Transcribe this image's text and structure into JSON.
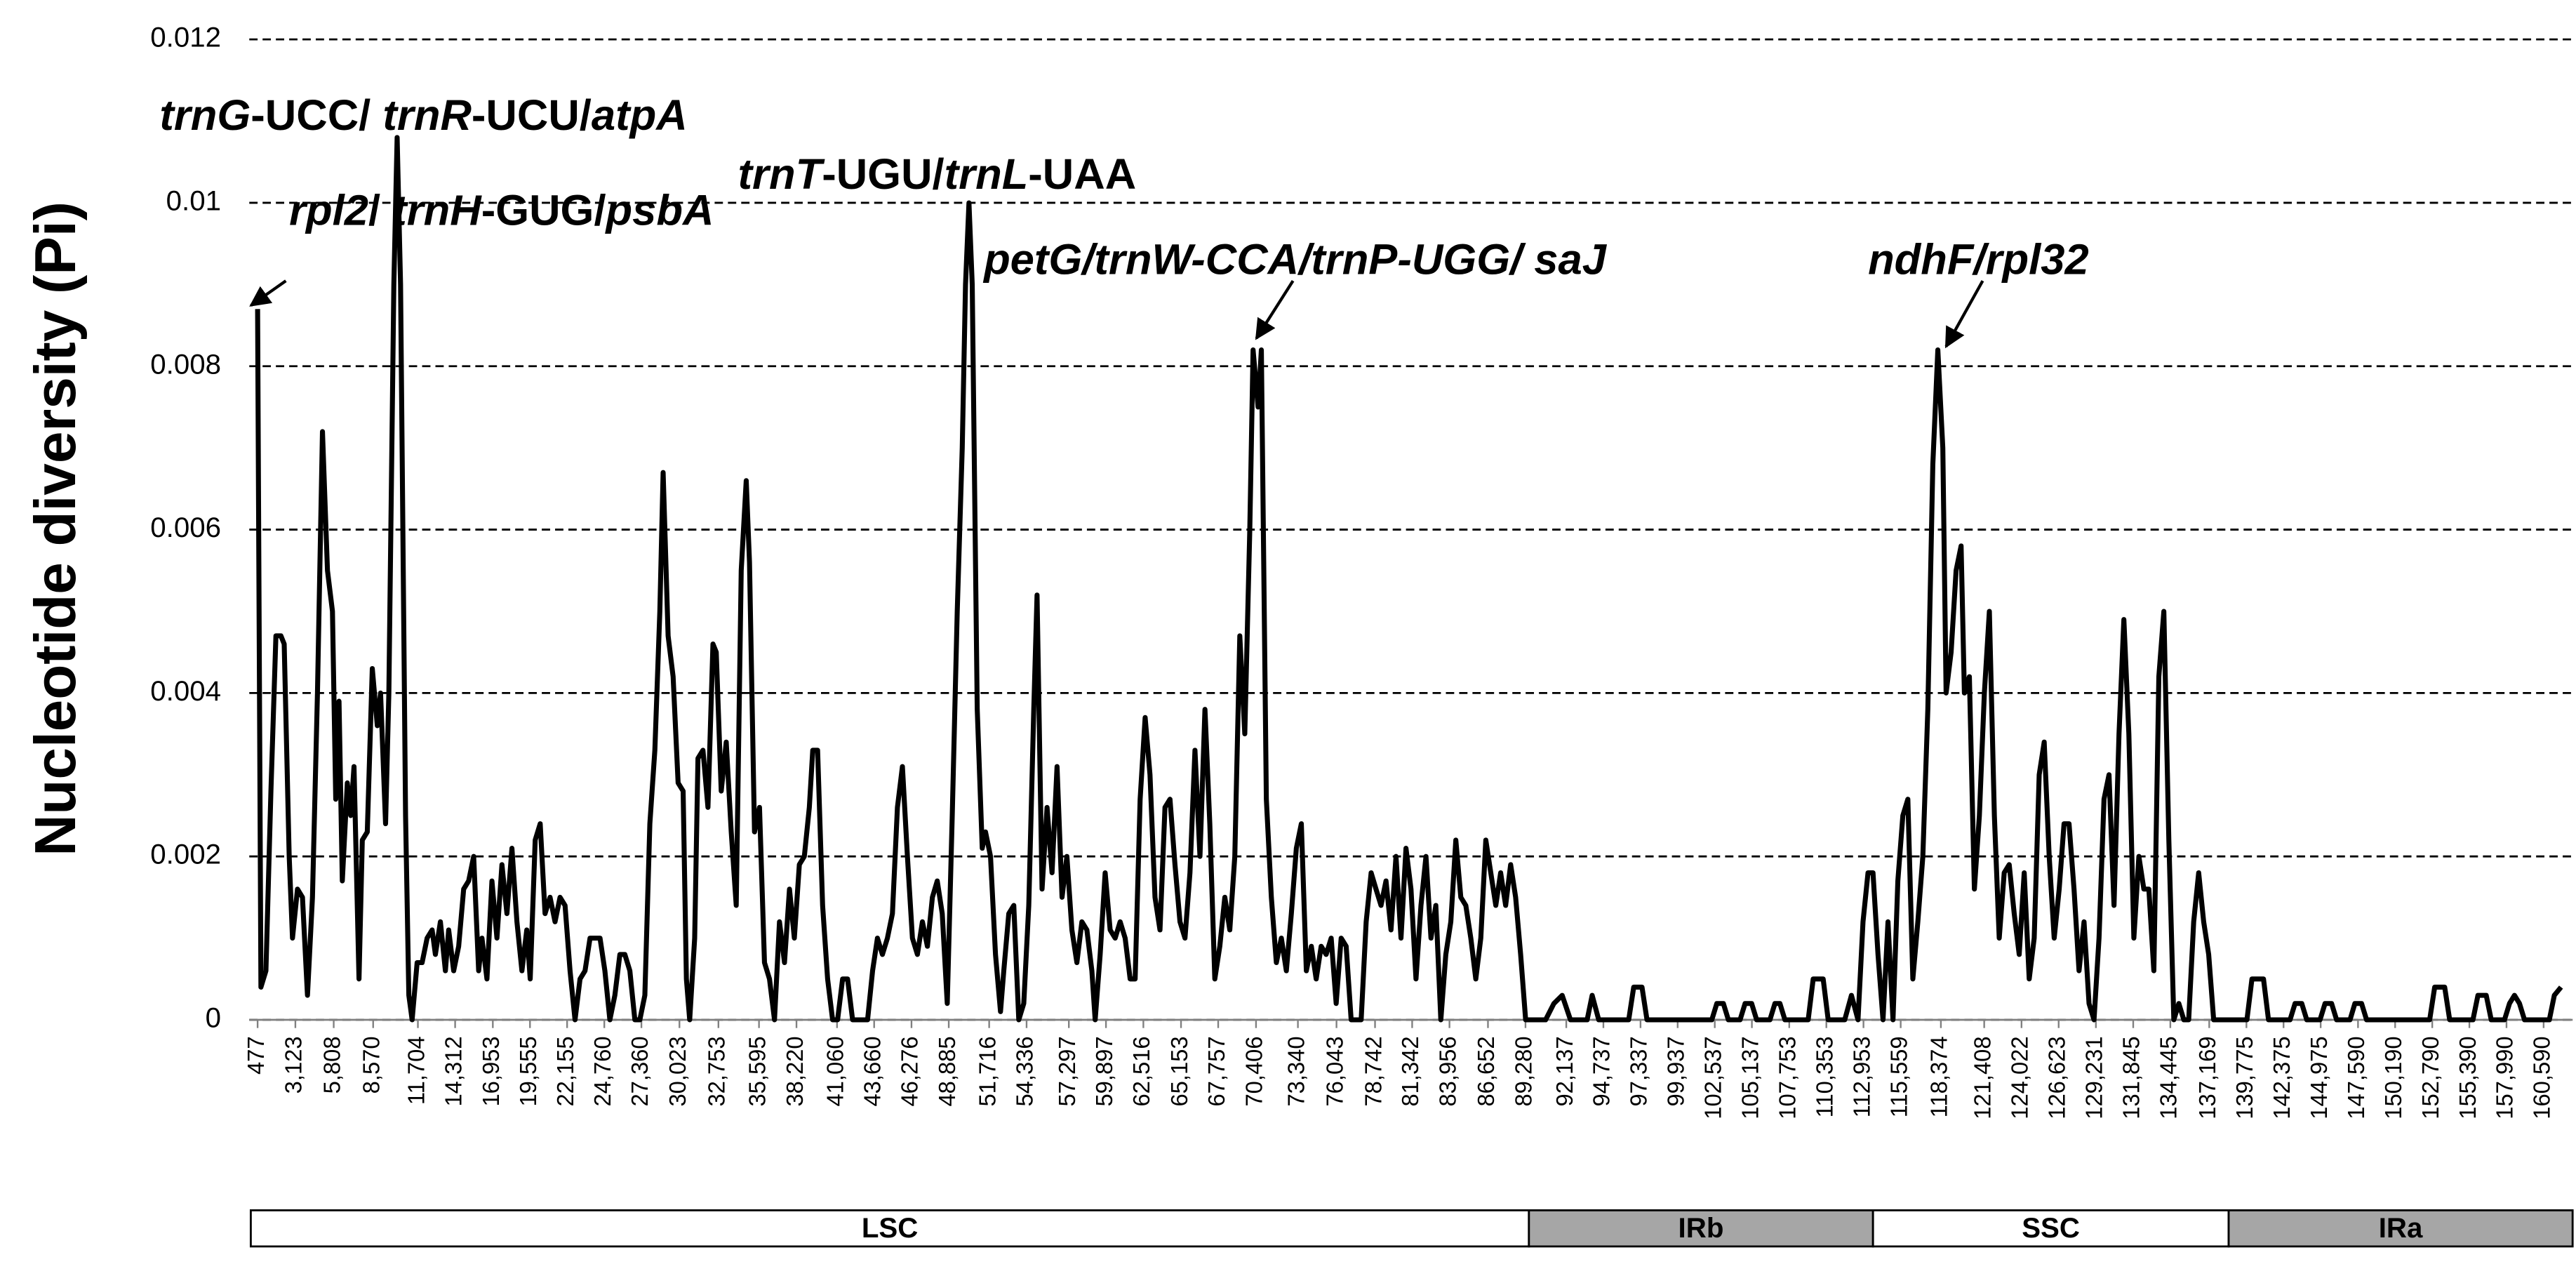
{
  "chart_data": {
    "type": "line",
    "ylabel": "Nucleotide diversity (Pi)",
    "color": "#000000",
    "grid": true,
    "ylim": [
      0,
      0.012
    ],
    "yticks": [
      0,
      0.002,
      0.004,
      0.006,
      0.008,
      0.01,
      0.012
    ],
    "xlim": [
      477,
      161810
    ],
    "xticks": [
      477,
      {
        "value": 3123,
        "label": "3,123"
      },
      {
        "value": 5808,
        "label": "5,808"
      },
      {
        "value": 8570,
        "label": "8,570"
      },
      {
        "value": 11704,
        "label": "11,704"
      },
      {
        "value": 14312,
        "label": "14,312"
      },
      {
        "value": 16953,
        "label": "16,953"
      },
      {
        "value": 19555,
        "label": "19,555"
      },
      {
        "value": 22155,
        "label": "22,155"
      },
      {
        "value": 24760,
        "label": "24,760"
      },
      {
        "value": 27360,
        "label": "27,360"
      },
      {
        "value": 30023,
        "label": "30,023"
      },
      {
        "value": 32753,
        "label": "32,753"
      },
      {
        "value": 35595,
        "label": "35,595"
      },
      {
        "value": 38220,
        "label": "38,220"
      },
      {
        "value": 41060,
        "label": "41,060"
      },
      {
        "value": 43660,
        "label": "43,660"
      },
      {
        "value": 46276,
        "label": "46,276"
      },
      {
        "value": 48885,
        "label": "48,885"
      },
      {
        "value": 51716,
        "label": "51,716"
      },
      {
        "value": 54336,
        "label": "54,336"
      },
      {
        "value": 57297,
        "label": "57,297"
      },
      {
        "value": 59897,
        "label": "59,897"
      },
      {
        "value": 62516,
        "label": "62,516"
      },
      {
        "value": 65153,
        "label": "65,153"
      },
      {
        "value": 67757,
        "label": "67,757"
      },
      {
        "value": 70406,
        "label": "70,406"
      },
      {
        "value": 73340,
        "label": "73,340"
      },
      {
        "value": 76043,
        "label": "76,043"
      },
      {
        "value": 78742,
        "label": "78,742"
      },
      {
        "value": 81342,
        "label": "81,342"
      },
      {
        "value": 83956,
        "label": "83,956"
      },
      {
        "value": 86652,
        "label": "86,652"
      },
      {
        "value": 89280,
        "label": "89,280"
      },
      {
        "value": 92137,
        "label": "92,137"
      },
      {
        "value": 94737,
        "label": "94,737"
      },
      {
        "value": 97337,
        "label": "97,337"
      },
      {
        "value": 99937,
        "label": "99,937"
      },
      {
        "value": 102537,
        "label": "102,537"
      },
      {
        "value": 105137,
        "label": "105,137"
      },
      {
        "value": 107753,
        "label": "107,753"
      },
      {
        "value": 110353,
        "label": "110,353"
      },
      {
        "value": 112953,
        "label": "112,953"
      },
      {
        "value": 115559,
        "label": "115,559"
      },
      {
        "value": 118374,
        "label": "118,374"
      },
      {
        "value": 121408,
        "label": "121,408"
      },
      {
        "value": 124022,
        "label": "124,022"
      },
      {
        "value": 126623,
        "label": "126,623"
      },
      {
        "value": 129231,
        "label": "129,231"
      },
      {
        "value": 131845,
        "label": "131,845"
      },
      {
        "value": 134445,
        "label": "134,445"
      },
      {
        "value": 137169,
        "label": "137,169"
      },
      {
        "value": 139775,
        "label": "139,775"
      },
      {
        "value": 142375,
        "label": "142,375"
      },
      {
        "value": 144975,
        "label": "144,975"
      },
      {
        "value": 147590,
        "label": "147,590"
      },
      {
        "value": 150190,
        "label": "150,190"
      },
      {
        "value": 152790,
        "label": "152,790"
      },
      {
        "value": 155390,
        "label": "155,390"
      },
      {
        "value": 157990,
        "label": "157,990"
      },
      {
        "value": 160590,
        "label": "160,590"
      }
    ],
    "x": [
      477,
      710,
      1060,
      1410,
      1760,
      2110,
      2340,
      2690,
      2920,
      3270,
      3620,
      3970,
      4320,
      4670,
      5020,
      5370,
      5720,
      5950,
      6180,
      6410,
      6760,
      7000,
      7230,
      7580,
      7810,
      8160,
      8510,
      8860,
      9090,
      9440,
      9670,
      10020,
      10250,
      10490,
      10840,
      11070,
      11300,
      11650,
      12000,
      12350,
      12700,
      12930,
      13280,
      13630,
      13860,
      14210,
      14560,
      14910,
      15260,
      15610,
      15960,
      16190,
      16540,
      16890,
      17240,
      17590,
      17940,
      18290,
      18640,
      18990,
      19330,
      19570,
      19920,
      20270,
      20610,
      20960,
      21310,
      21660,
      22010,
      22360,
      22710,
      23060,
      23410,
      23760,
      24110,
      24460,
      24800,
      25150,
      25500,
      25850,
      26200,
      26550,
      26900,
      27250,
      27600,
      27950,
      28300,
      28650,
      28880,
      29230,
      29580,
      29930,
      30280,
      30510,
      30740,
      31090,
      31320,
      31670,
      32020,
      32370,
      32600,
      32950,
      33300,
      33650,
      34000,
      34350,
      34700,
      34930,
      35280,
      35630,
      35980,
      36330,
      36680,
      37030,
      37380,
      37730,
      38070,
      38420,
      38770,
      39120,
      39360,
      39700,
      40050,
      40400,
      40750,
      41100,
      41450,
      41800,
      42150,
      43200,
      43550,
      43890,
      44240,
      44590,
      44940,
      45290,
      45640,
      45990,
      46340,
      46690,
      47040,
      47390,
      47740,
      48080,
      48430,
      48780,
      49130,
      49480,
      49830,
      50060,
      50300,
      50530,
      50880,
      51230,
      51460,
      51810,
      52160,
      52510,
      52740,
      53090,
      53440,
      53790,
      54140,
      54490,
      54840,
      55070,
      55420,
      55770,
      56120,
      56470,
      56820,
      57160,
      57510,
      57860,
      58210,
      58560,
      58910,
      59140,
      59490,
      59840,
      60190,
      60540,
      60890,
      61240,
      61590,
      61940,
      62290,
      62640,
      62980,
      63330,
      63680,
      64030,
      64380,
      64730,
      65080,
      65430,
      65780,
      66130,
      66480,
      66830,
      67170,
      67520,
      67870,
      68220,
      68570,
      68920,
      69270,
      69620,
      69970,
      70200,
      70550,
      70780,
      71130,
      71480,
      71830,
      72180,
      72530,
      72880,
      73230,
      73580,
      73930,
      74280,
      74620,
      74970,
      75320,
      75670,
      76020,
      76370,
      76720,
      77070,
      77770,
      78120,
      78470,
      78810,
      79160,
      79510,
      79860,
      80210,
      80560,
      80910,
      81260,
      81610,
      81960,
      82310,
      82660,
      83000,
      83350,
      83700,
      84050,
      84400,
      84750,
      85100,
      85450,
      85800,
      86150,
      86500,
      86850,
      87200,
      87540,
      87890,
      88240,
      88590,
      88940,
      89290,
      90690,
      91270,
      91850,
      92430,
      93600,
      93950,
      94410,
      96510,
      96860,
      97440,
      97790,
      102330,
      102680,
      103140,
      103490,
      104310,
      104660,
      105120,
      105470,
      106400,
      106750,
      107100,
      107450,
      109080,
      109430,
      110130,
      110480,
      111640,
      112110,
      112570,
      112920,
      113270,
      113620,
      113970,
      114320,
      114670,
      115020,
      115360,
      115710,
      116060,
      116410,
      116760,
      117110,
      117460,
      117810,
      118160,
      118510,
      118740,
      119090,
      119440,
      119790,
      120020,
      120370,
      120720,
      121070,
      121420,
      121770,
      122120,
      122460,
      122810,
      123160,
      123510,
      123860,
      124210,
      124560,
      124910,
      125260,
      125610,
      125960,
      126310,
      126660,
      127000,
      127350,
      127700,
      128050,
      128400,
      128750,
      129100,
      129450,
      129800,
      130150,
      130500,
      130850,
      131190,
      131540,
      131890,
      132240,
      132590,
      132940,
      133290,
      133640,
      133990,
      134340,
      134690,
      135040,
      135390,
      135730,
      136080,
      136430,
      136780,
      137130,
      137480,
      139810,
      140160,
      140970,
      141320,
      142830,
      143180,
      143650,
      144000,
      144930,
      145280,
      145740,
      146090,
      147030,
      147370,
      147840,
      148190,
      152610,
      152960,
      153660,
      154010,
      155640,
      155990,
      156570,
      156920,
      157850,
      158200,
      158550,
      158900,
      159250,
      160990,
      161340,
      161810
    ],
    "values": [
      0.0087,
      0.0004,
      0.0006,
      0.0028,
      0.0047,
      0.0047,
      0.0046,
      0.002,
      0.001,
      0.0016,
      0.0015,
      0.0003,
      0.0015,
      0.004,
      0.0072,
      0.0055,
      0.005,
      0.0027,
      0.0039,
      0.0017,
      0.0029,
      0.0025,
      0.0031,
      0.0005,
      0.0022,
      0.0023,
      0.0043,
      0.0036,
      0.004,
      0.0024,
      0.004,
      0.009,
      0.0108,
      0.009,
      0.0025,
      0.0003,
      0,
      0.0007,
      0.0007,
      0.001,
      0.0011,
      0.0008,
      0.0012,
      0.0006,
      0.0011,
      0.0006,
      0.0009,
      0.0016,
      0.0017,
      0.002,
      0.0006,
      0.001,
      0.0005,
      0.0017,
      0.001,
      0.0019,
      0.0013,
      0.0021,
      0.0012,
      0.0006,
      0.0011,
      0.0005,
      0.0022,
      0.0024,
      0.0013,
      0.0015,
      0.0012,
      0.0015,
      0.0014,
      0.0006,
      0,
      0.0005,
      0.0006,
      0.001,
      0.001,
      0.001,
      0.0006,
      0,
      0.0003,
      0.0008,
      0.0008,
      0.0006,
      0,
      0,
      0.0003,
      0.0024,
      0.0033,
      0.005,
      0.0067,
      0.0047,
      0.0042,
      0.0029,
      0.0028,
      0.0005,
      0,
      0.001,
      0.0032,
      0.0033,
      0.0026,
      0.0046,
      0.0045,
      0.0028,
      0.0034,
      0.0023,
      0.0014,
      0.0055,
      0.0066,
      0.0056,
      0.0023,
      0.0026,
      0.0007,
      0.0005,
      0,
      0.0012,
      0.0007,
      0.0016,
      0.001,
      0.0019,
      0.002,
      0.0026,
      0.0033,
      0.0033,
      0.0014,
      0.0005,
      0,
      0,
      0.0005,
      0.0005,
      0,
      0,
      0.0006,
      0.001,
      0.0008,
      0.001,
      0.0013,
      0.0026,
      0.0031,
      0.002,
      0.001,
      0.0008,
      0.0012,
      0.0009,
      0.0015,
      0.0017,
      0.0013,
      0.0002,
      0.0025,
      0.005,
      0.007,
      0.009,
      0.01,
      0.009,
      0.0038,
      0.0021,
      0.0023,
      0.002,
      0.0008,
      0.0001,
      0.0006,
      0.0013,
      0.0014,
      0,
      0.0002,
      0.0014,
      0.0038,
      0.0052,
      0.0016,
      0.0026,
      0.0018,
      0.0031,
      0.0015,
      0.002,
      0.0011,
      0.0007,
      0.0012,
      0.0011,
      0.0006,
      0,
      0.0008,
      0.0018,
      0.0011,
      0.001,
      0.0012,
      0.001,
      0.0005,
      0.0005,
      0.0027,
      0.0037,
      0.003,
      0.0015,
      0.0011,
      0.0026,
      0.0027,
      0.0019,
      0.0012,
      0.001,
      0.0018,
      0.0033,
      0.002,
      0.0038,
      0.0024,
      0.0005,
      0.0009,
      0.0015,
      0.0011,
      0.002,
      0.0047,
      0.0035,
      0.006,
      0.0082,
      0.0075,
      0.0082,
      0.0027,
      0.0015,
      0.0007,
      0.001,
      0.0006,
      0.0013,
      0.0021,
      0.0024,
      0.0006,
      0.0009,
      0.0005,
      0.0009,
      0.0008,
      0.001,
      0.0002,
      0.001,
      0.0009,
      0,
      0,
      0.0012,
      0.0018,
      0.0016,
      0.0014,
      0.0017,
      0.0011,
      0.002,
      0.001,
      0.0021,
      0.0016,
      0.0005,
      0.0014,
      0.002,
      0.001,
      0.0014,
      0,
      0.0008,
      0.0012,
      0.0022,
      0.0015,
      0.0014,
      0.001,
      0.0005,
      0.001,
      0.0022,
      0.0018,
      0.0014,
      0.0018,
      0.0014,
      0.0019,
      0.0015,
      0.0008,
      0,
      0,
      0.0002,
      0.0003,
      0,
      0,
      0.0003,
      0,
      0,
      0.0004,
      0.0004,
      0,
      0,
      0.0002,
      0.0002,
      0,
      0,
      0.0002,
      0.0002,
      0,
      0,
      0.0002,
      0.0002,
      0,
      0,
      0.0005,
      0.0005,
      0,
      0,
      0.0003,
      0,
      0.0012,
      0.0018,
      0.0018,
      0.0008,
      0,
      0.0012,
      0,
      0.0017,
      0.0025,
      0.0027,
      0.0005,
      0.0012,
      0.002,
      0.0038,
      0.0068,
      0.0082,
      0.007,
      0.004,
      0.0045,
      0.0055,
      0.0058,
      0.004,
      0.0042,
      0.0016,
      0.0025,
      0.004,
      0.005,
      0.0025,
      0.001,
      0.0018,
      0.0019,
      0.0013,
      0.0008,
      0.0018,
      0.0005,
      0.001,
      0.003,
      0.0034,
      0.002,
      0.001,
      0.0016,
      0.0024,
      0.0024,
      0.0016,
      0.0006,
      0.0012,
      0.0002,
      0,
      0.001,
      0.0027,
      0.003,
      0.0014,
      0.0035,
      0.0049,
      0.0035,
      0.001,
      0.002,
      0.0016,
      0.0016,
      0.0006,
      0.0042,
      0.005,
      0.0022,
      0,
      0.0002,
      0,
      0,
      0.0012,
      0.0018,
      0.0012,
      0.0008,
      0,
      0,
      0.0005,
      0.0005,
      0,
      0,
      0.0002,
      0.0002,
      0,
      0,
      0.0002,
      0.0002,
      0,
      0,
      0.0002,
      0.0002,
      0,
      0,
      0.0004,
      0.0004,
      0,
      0,
      0.0003,
      0.0003,
      0,
      0,
      0.0002,
      0.0003,
      0.0002,
      0,
      0,
      0.0003,
      0.0004
    ],
    "annotations": [
      {
        "segments": [
          {
            "text": "rpl2",
            "italic": true
          },
          {
            "text": "/ "
          },
          {
            "text": "trnH",
            "italic": true
          },
          {
            "text": "-GUG/"
          },
          {
            "text": "psbA",
            "italic": true
          }
        ]
      },
      {
        "segments": [
          {
            "text": "trnG",
            "italic": true
          },
          {
            "text": "-UCC/ "
          },
          {
            "text": "trnR",
            "italic": true
          },
          {
            "text": "-UCU/"
          },
          {
            "text": "atpA",
            "italic": true
          }
        ]
      },
      {
        "segments": [
          {
            "text": "trnT",
            "italic": true
          },
          {
            "text": "-UGU/"
          },
          {
            "text": "trnL",
            "italic": true
          },
          {
            "text": "-UAA"
          }
        ]
      },
      {
        "segments": [
          {
            "text": "petG/trnW-CCA/trnP-UGG/ saJ",
            "italic": true
          }
        ]
      },
      {
        "segments": [
          {
            "text": "ndhF/rpl32",
            "italic": true
          }
        ]
      }
    ],
    "regions": [
      {
        "name": "LSC",
        "start": 0,
        "end": 89520,
        "color": "#ffffff"
      },
      {
        "name": "IRb",
        "start": 89520,
        "end": 113620,
        "color": "#a6a6a6"
      },
      {
        "name": "SSC",
        "start": 113620,
        "end": 138530,
        "color": "#ffffff"
      },
      {
        "name": "IRa",
        "start": 138530,
        "end": 162620,
        "color": "#a6a6a6"
      }
    ]
  }
}
